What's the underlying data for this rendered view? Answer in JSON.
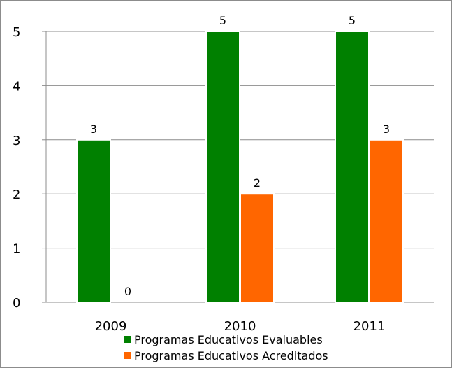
{
  "chart_data": {
    "type": "bar",
    "categories": [
      "2009",
      "2010",
      "2011"
    ],
    "series": [
      {
        "name": "Programas Educativos Evaluables",
        "values": [
          3,
          5,
          5
        ],
        "color": "#008000"
      },
      {
        "name": "Programas Educativos Acreditados",
        "values": [
          0,
          2,
          3
        ],
        "color": "#ff6600"
      }
    ],
    "y_ticks": [
      "0",
      "1",
      "2",
      "3",
      "4",
      "5"
    ],
    "data_labels": [
      [
        "3",
        "5",
        "5"
      ],
      [
        "0",
        "2",
        "3"
      ]
    ],
    "ylim": [
      0,
      5
    ],
    "grid": true,
    "legend_position": "bottom"
  }
}
